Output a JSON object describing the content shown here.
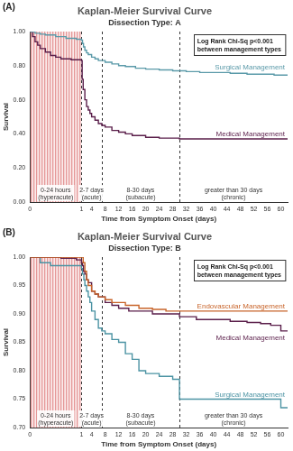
{
  "chart_data": [
    {
      "type": "line",
      "panel": "(A)",
      "title": "Kaplan-Meier Survival Curve",
      "subtitle": "Dissection Type: A",
      "annotation": [
        "Log Rank Chi-Sq p<0.001",
        "between management types"
      ],
      "x_label": "Time from Symptom Onset (days)",
      "y_label": "Survival",
      "xlim": [
        0,
        62
      ],
      "xticks": [
        0,
        1,
        4,
        8,
        12,
        16,
        20,
        24,
        28,
        32,
        36,
        40,
        44,
        48,
        52,
        56,
        60
      ],
      "ylim": [
        0,
        1
      ],
      "yticks": [
        {
          "value": 0,
          "label": "0.00"
        },
        {
          "value": 0.2,
          "label": "0.20"
        },
        {
          "value": 0.4,
          "label": "0.40"
        },
        {
          "value": 0.6,
          "label": "0.60"
        },
        {
          "value": 0.8,
          "label": "0.80"
        },
        {
          "value": 1,
          "label": "1.00"
        }
      ],
      "grid": false,
      "line_style": "step",
      "regions": [
        {
          "start": 0,
          "end": 1,
          "label": [
            "0-24 hours",
            "(hyperacute)"
          ]
        },
        {
          "start": 1,
          "end": 7,
          "label": [
            "2-7 days",
            "(acute)"
          ]
        },
        {
          "start": 7,
          "end": 30,
          "label": [
            "8-30 days",
            "(subacute)"
          ]
        },
        {
          "start": 30,
          "end": 62,
          "label": [
            "greater than 30 days",
            "(chronic)"
          ]
        }
      ],
      "series": [
        {
          "name": "Surgical Management",
          "color": "#5b9aa9",
          "x": [
            0,
            0.1,
            0.2,
            0.3,
            0.5,
            0.7,
            0.9,
            1,
            1.3,
            1.6,
            2,
            2.5,
            3,
            4,
            5,
            6,
            8,
            10,
            12,
            14,
            17,
            20,
            24,
            28,
            32,
            36,
            40,
            45,
            50,
            55,
            58,
            62
          ],
          "values": [
            1,
            0.99,
            0.985,
            0.98,
            0.97,
            0.96,
            0.955,
            0.95,
            0.93,
            0.91,
            0.89,
            0.875,
            0.865,
            0.85,
            0.84,
            0.83,
            0.82,
            0.81,
            0.8,
            0.795,
            0.785,
            0.78,
            0.775,
            0.77,
            0.765,
            0.76,
            0.76,
            0.755,
            0.75,
            0.75,
            0.745,
            0.745
          ]
        },
        {
          "name": "Medical Management",
          "color": "#5a1e4a",
          "x": [
            0,
            0.05,
            0.1,
            0.15,
            0.2,
            0.3,
            0.4,
            0.5,
            0.6,
            0.8,
            1,
            1.2,
            1.5,
            2,
            2.5,
            3,
            3.5,
            4,
            5,
            6,
            7,
            8,
            10,
            12,
            14,
            16,
            20,
            24,
            30,
            40,
            50,
            62
          ],
          "values": [
            1,
            0.97,
            0.94,
            0.92,
            0.9,
            0.88,
            0.86,
            0.85,
            0.84,
            0.835,
            0.83,
            0.72,
            0.66,
            0.6,
            0.56,
            0.54,
            0.52,
            0.5,
            0.48,
            0.46,
            0.45,
            0.44,
            0.42,
            0.41,
            0.4,
            0.39,
            0.38,
            0.375,
            0.37,
            0.37,
            0.37,
            0.37
          ]
        }
      ]
    },
    {
      "type": "line",
      "panel": "(B)",
      "title": "Kaplan-Meier Survival Curve",
      "subtitle": "Dissection Type: B",
      "annotation": [
        "Log Rank Chi-Sq p<0.001",
        "between management types"
      ],
      "x_label": "Time from Symptom Onset (days)",
      "y_label": "Survival",
      "xlim": [
        0,
        62
      ],
      "xticks": [
        0,
        1,
        4,
        8,
        12,
        16,
        20,
        24,
        28,
        32,
        36,
        40,
        44,
        48,
        52,
        56,
        60
      ],
      "ylim": [
        0.7,
        1
      ],
      "yticks": [
        {
          "value": 0.7,
          "label": "0.70"
        },
        {
          "value": 0.75,
          "label": "0.75"
        },
        {
          "value": 0.8,
          "label": "0.80"
        },
        {
          "value": 0.85,
          "label": "0.85"
        },
        {
          "value": 0.9,
          "label": "0.90"
        },
        {
          "value": 0.95,
          "label": "0.95"
        },
        {
          "value": 1,
          "label": "1.00"
        }
      ],
      "grid": false,
      "line_style": "step",
      "regions": [
        {
          "start": 0,
          "end": 1,
          "label": [
            "0-24 hours",
            "(hyperacute)"
          ]
        },
        {
          "start": 1,
          "end": 7,
          "label": [
            "2-7 days",
            "(acute)"
          ]
        },
        {
          "start": 7,
          "end": 30,
          "label": [
            "8-30 days",
            "(subacute)"
          ]
        },
        {
          "start": 30,
          "end": 62,
          "label": [
            "greater than 30 days",
            "(chronic)"
          ]
        }
      ],
      "series": [
        {
          "name": "Endovascular Management",
          "color": "#c8642a",
          "x": [
            0,
            1.2,
            1.5,
            2,
            2.5,
            3,
            4,
            5,
            6,
            8,
            10,
            14,
            18,
            22,
            26,
            62
          ],
          "values": [
            1,
            1,
            0.99,
            0.975,
            0.96,
            0.95,
            0.94,
            0.935,
            0.93,
            0.925,
            0.92,
            0.915,
            0.91,
            0.908,
            0.905,
            0.905
          ]
        },
        {
          "name": "Medical Management",
          "color": "#5a1e4a",
          "x": [
            0,
            0.6,
            0.9,
            1,
            1.3,
            1.6,
            2,
            2.5,
            3,
            4,
            5,
            6,
            8,
            10,
            12,
            15,
            18,
            22,
            26,
            30,
            35,
            40,
            45,
            50,
            54,
            57,
            60,
            62
          ],
          "values": [
            1,
            0.998,
            0.995,
            0.99,
            0.985,
            0.975,
            0.97,
            0.96,
            0.955,
            0.94,
            0.935,
            0.93,
            0.92,
            0.915,
            0.91,
            0.905,
            0.905,
            0.9,
            0.9,
            0.895,
            0.89,
            0.89,
            0.887,
            0.885,
            0.883,
            0.88,
            0.87,
            0.87
          ]
        },
        {
          "name": "Surgical Management",
          "color": "#4b93a3",
          "x": [
            0,
            0.2,
            0.4,
            0.7,
            1,
            1.3,
            1.7,
            2,
            2.5,
            3,
            3.5,
            4,
            5,
            6,
            7,
            8,
            10,
            12,
            14,
            16,
            18,
            20,
            24,
            28,
            30,
            40,
            50,
            58,
            60,
            62
          ],
          "values": [
            1,
            0.99,
            0.985,
            0.985,
            0.98,
            0.97,
            0.96,
            0.95,
            0.94,
            0.93,
            0.92,
            0.905,
            0.89,
            0.875,
            0.87,
            0.865,
            0.855,
            0.85,
            0.83,
            0.82,
            0.8,
            0.795,
            0.79,
            0.785,
            0.75,
            0.75,
            0.75,
            0.75,
            0.735,
            0.735
          ]
        }
      ]
    }
  ]
}
